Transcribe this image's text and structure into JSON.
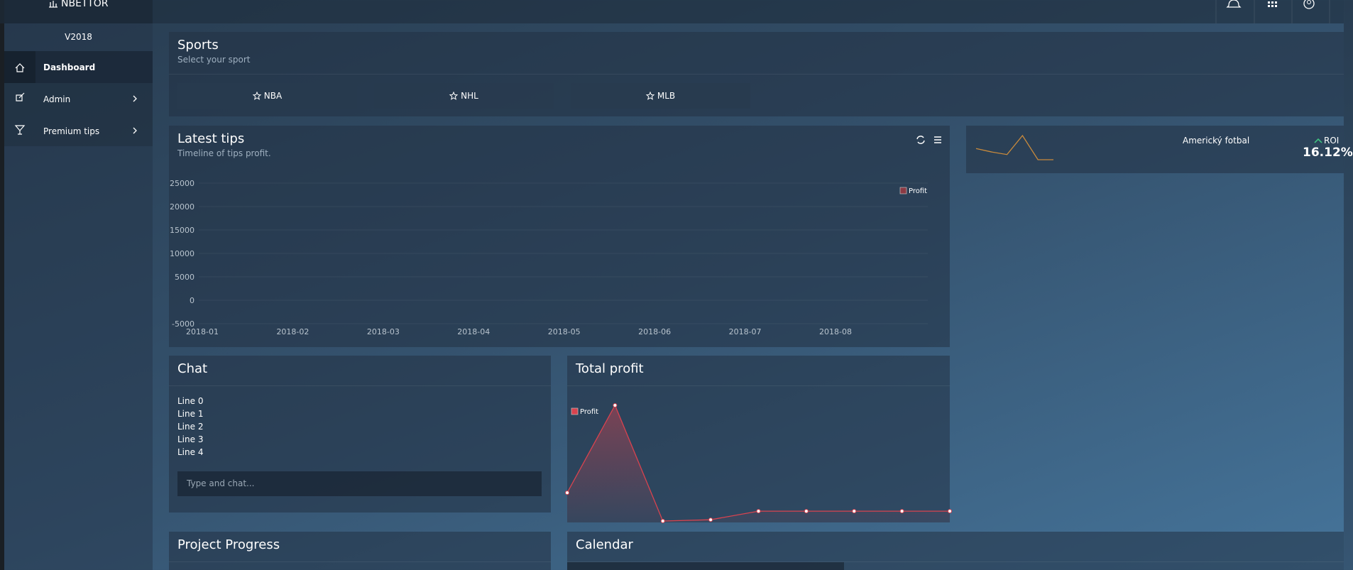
{
  "sidebar": {
    "brand": "NBETTOR",
    "version": "V2018",
    "menu": [
      "Dashboard",
      "Admin",
      "Premium tips"
    ]
  },
  "sports": {
    "title": "Sports",
    "subtitle": "Select your sport",
    "buttons": [
      "NBA",
      "NHL",
      "MLB"
    ]
  },
  "latest_tips": {
    "title": "Latest tips",
    "subtitle": "Timeline of tips profit.",
    "chart_data": {
      "type": "line",
      "categories": [
        "2018-01",
        "2018-02",
        "2018-03",
        "2018-04",
        "2018-05",
        "2018-06",
        "2018-07",
        "2018-08"
      ],
      "series": [
        {
          "name": "Profit",
          "color": "#8b3a44"
        }
      ],
      "ylim": [
        -5000,
        25000
      ],
      "yticks": [
        -5000,
        0,
        5000,
        10000,
        15000,
        20000,
        25000
      ],
      "grid": true,
      "legend": "top-right"
    }
  },
  "roi_card": {
    "sport": "Americký fotbal",
    "label": "ROI",
    "value": "16.12%",
    "sparkline": {
      "type": "line",
      "values": [
        13,
        9,
        6,
        28,
        0,
        0
      ],
      "color": "#c98a3c"
    }
  },
  "chat": {
    "title": "Chat",
    "lines": [
      "Line 0",
      "Line 1",
      "Line 2",
      "Line 3",
      "Line 4"
    ],
    "placeholder": "Type and chat..."
  },
  "total_profit": {
    "title": "Total profit",
    "chart_data": {
      "type": "line",
      "series": [
        {
          "name": "Profit",
          "color": "#d9434f",
          "values": [
            560,
            2600,
            -100,
            -70,
            130,
            130,
            130,
            130,
            130
          ]
        }
      ],
      "legend": "top-left"
    }
  },
  "project_progress": {
    "title": "Project Progress"
  },
  "calendar": {
    "title": "Calendar"
  }
}
